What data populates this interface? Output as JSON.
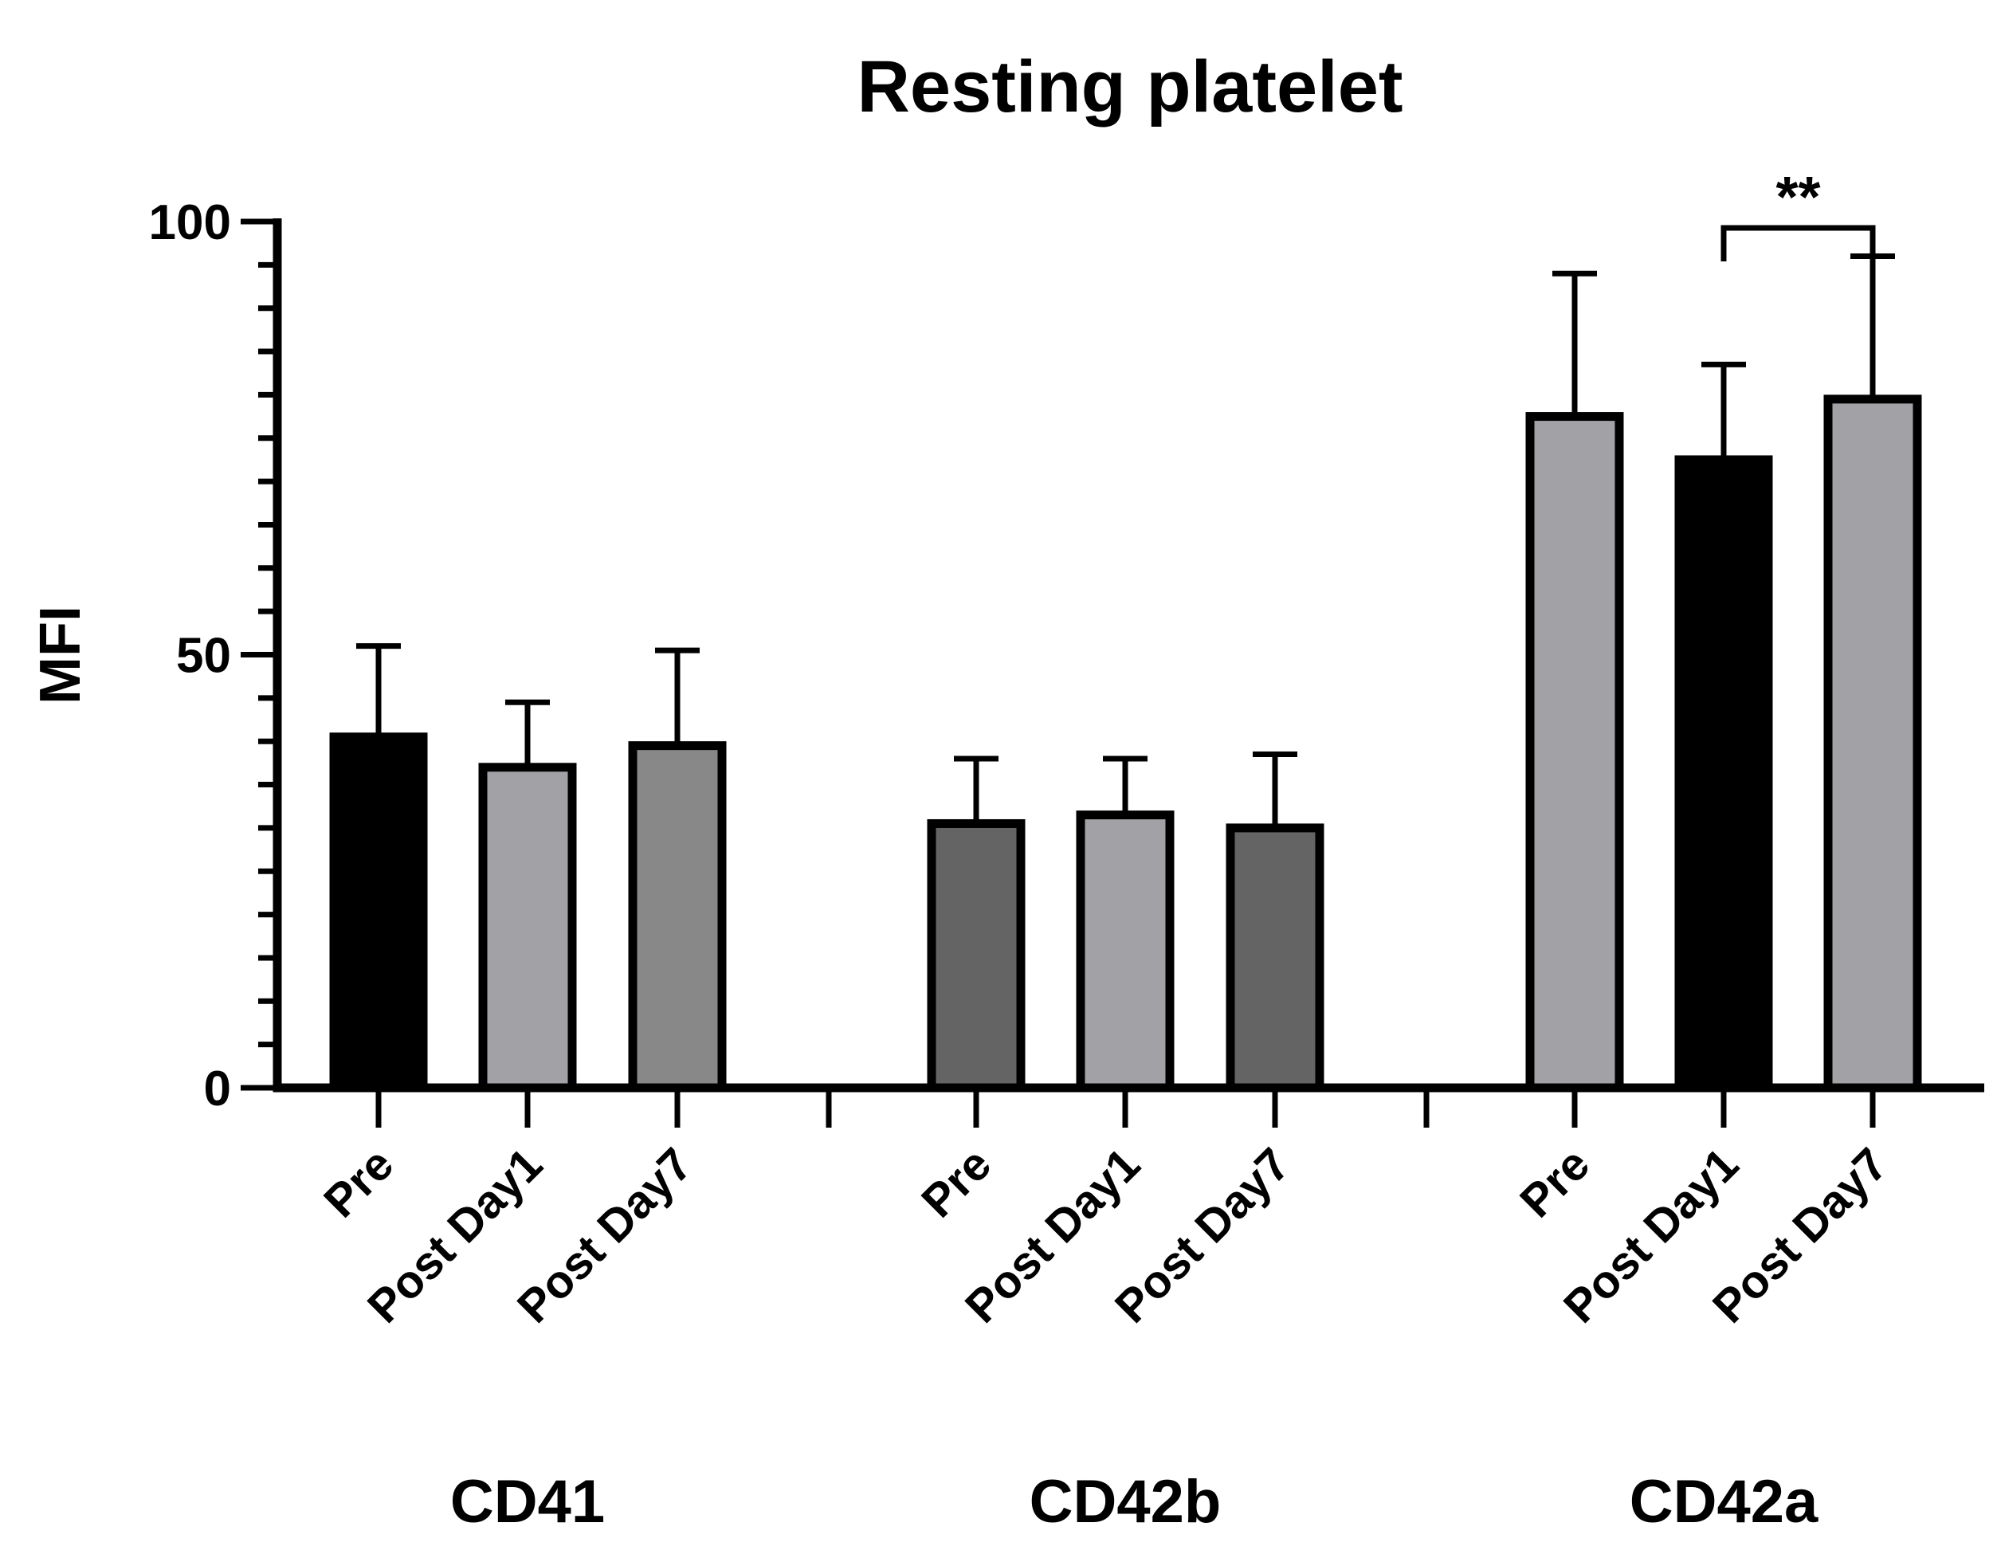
{
  "chart_data": {
    "type": "bar",
    "title": "Resting platelet",
    "ylabel": "MFI",
    "xlabel": "",
    "ylim": [
      0,
      100
    ],
    "yticks": [
      0,
      50,
      100
    ],
    "minor_tick_step": 5,
    "groups": [
      {
        "name": "CD41",
        "bars": [
          {
            "label": "Pre",
            "value": 40.5,
            "error": 10.5,
            "color": "#000000"
          },
          {
            "label": "Post Day1",
            "value": 37,
            "error": 7.5,
            "color": "#a2a1a6"
          },
          {
            "label": "Post Day7",
            "value": 39.5,
            "error": 11,
            "color": "#888888"
          }
        ]
      },
      {
        "name": "CD42b",
        "bars": [
          {
            "label": "Pre",
            "value": 30.5,
            "error": 7.5,
            "color": "#646464"
          },
          {
            "label": "Post Day1",
            "value": 31.5,
            "error": 6.5,
            "color": "#a2a1a6"
          },
          {
            "label": "Post Day7",
            "value": 30,
            "error": 8.5,
            "color": "#646464"
          }
        ]
      },
      {
        "name": "CD42a",
        "bars": [
          {
            "label": "Pre",
            "value": 77.5,
            "error": 16.5,
            "color": "#a2a1a6"
          },
          {
            "label": "Post Day1",
            "value": 72.5,
            "error": 11,
            "color": "#000000"
          },
          {
            "label": "Post Day7",
            "value": 79.5,
            "error": 16.5,
            "color": "#a2a1a6"
          }
        ]
      }
    ],
    "annotations": [
      {
        "text": "**",
        "group": "CD42a",
        "from": "Post Day1",
        "to": "Post Day7",
        "value": 100
      }
    ],
    "grid": false,
    "legend": "none"
  }
}
